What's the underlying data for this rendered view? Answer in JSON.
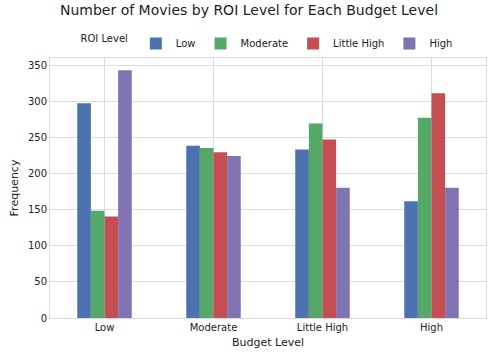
{
  "chart_data": {
    "type": "bar",
    "title": "Number of Movies by ROI Level for Each Budget Level",
    "x_label": "Budget Level",
    "y_label": "Frequency",
    "legend_title": "ROI Level",
    "categories": [
      "Low",
      "Moderate",
      "Little High",
      "High"
    ],
    "series": [
      {
        "name": "Low",
        "color": "#4C72B0",
        "values": [
          298,
          239,
          234,
          162
        ]
      },
      {
        "name": "Moderate",
        "color": "#55A868",
        "values": [
          149,
          236,
          270,
          278
        ]
      },
      {
        "name": "Little High",
        "color": "#C44E52",
        "values": [
          141,
          230,
          248,
          312
        ]
      },
      {
        "name": "High",
        "color": "#8172B2",
        "values": [
          344,
          225,
          181,
          181
        ]
      }
    ],
    "ylim": [
      0,
      361
    ],
    "yticks": [
      0,
      50,
      100,
      150,
      200,
      250,
      300,
      350
    ],
    "grid": true,
    "legend": "upper center"
  }
}
